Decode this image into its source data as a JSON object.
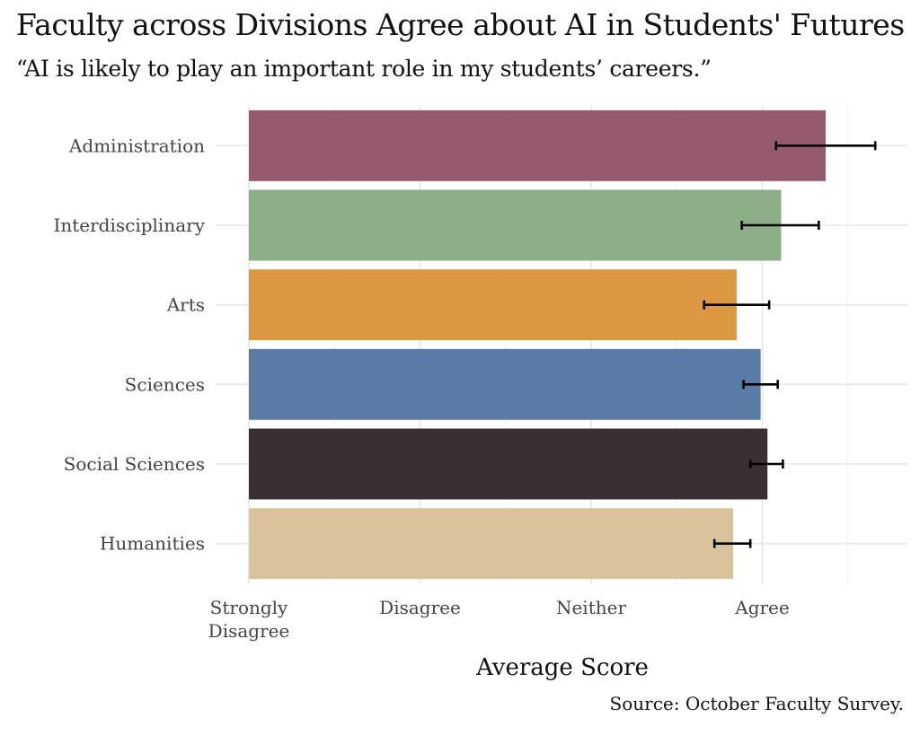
{
  "chart_data": {
    "type": "bar",
    "orientation": "horizontal",
    "title": "Faculty across Divisions Agree about AI in Students' Futures",
    "subtitle": "“AI is likely to play an important role in my students’ careers.”",
    "xlabel": "Average Score",
    "ylabel": "",
    "caption": "Source: October Faculty Survey.",
    "xlim": [
      0,
      3.6
    ],
    "x_ticks": [
      {
        "value": 0,
        "lines": [
          "Strongly",
          "Disagree"
        ]
      },
      {
        "value": 1,
        "lines": [
          "Disagree"
        ]
      },
      {
        "value": 2,
        "lines": [
          "Neither"
        ]
      },
      {
        "value": 3,
        "lines": [
          "Agree"
        ]
      }
    ],
    "categories": [
      "Administration",
      "Interdisciplinary",
      "Arts",
      "Sciences",
      "Social Sciences",
      "Humanities"
    ],
    "values": [
      3.37,
      3.11,
      2.85,
      2.99,
      3.03,
      2.83
    ],
    "error_low": [
      3.08,
      2.88,
      2.66,
      2.89,
      2.93,
      2.72
    ],
    "error_high": [
      3.66,
      3.33,
      3.04,
      3.09,
      3.12,
      2.93
    ],
    "colors": [
      "#955a6e",
      "#8cae87",
      "#dc9942",
      "#5a7ba6",
      "#3a2f31",
      "#dac39a"
    ],
    "grid": true,
    "legend": "none"
  }
}
